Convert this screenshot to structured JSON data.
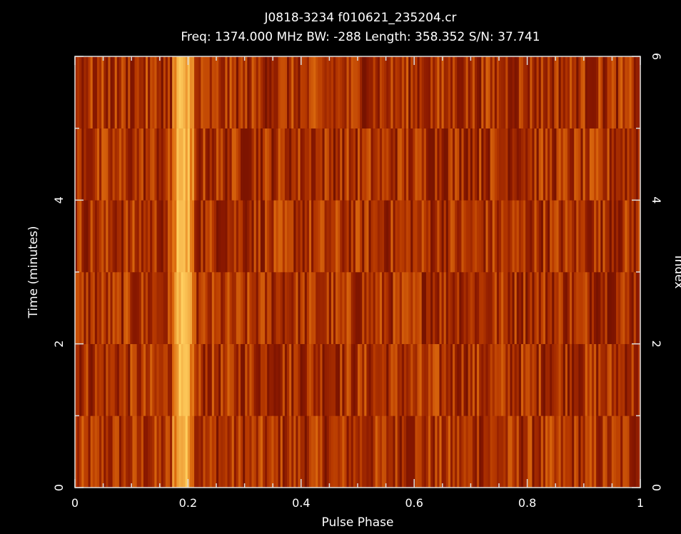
{
  "chart_data": {
    "type": "heatmap",
    "title": "J0818-3234 f010621_235204.cr",
    "subtitle": "Freq: 1374.000 MHz BW: -288 Length: 358.352 S/N: 37.741",
    "xlabel": "Pulse Phase",
    "ylabel": "Time (minutes)",
    "y2label": "Index",
    "xlim": [
      0,
      1
    ],
    "ylim": [
      0,
      6
    ],
    "y2lim": [
      0,
      6
    ],
    "x_ticks": [
      "0",
      "0.2",
      "0.4",
      "0.6",
      "0.8",
      "1"
    ],
    "y_ticks": [
      "0",
      "2",
      "4"
    ],
    "y2_ticks": [
      "0",
      "2",
      "4",
      "6"
    ],
    "n_subintegrations": 6,
    "n_phase_bins": 256,
    "pulse_phase_peak": 0.19,
    "colormap": [
      "#5a0a00",
      "#8a1800",
      "#b83a00",
      "#e07010",
      "#ffd060"
    ],
    "background": "#000000"
  }
}
